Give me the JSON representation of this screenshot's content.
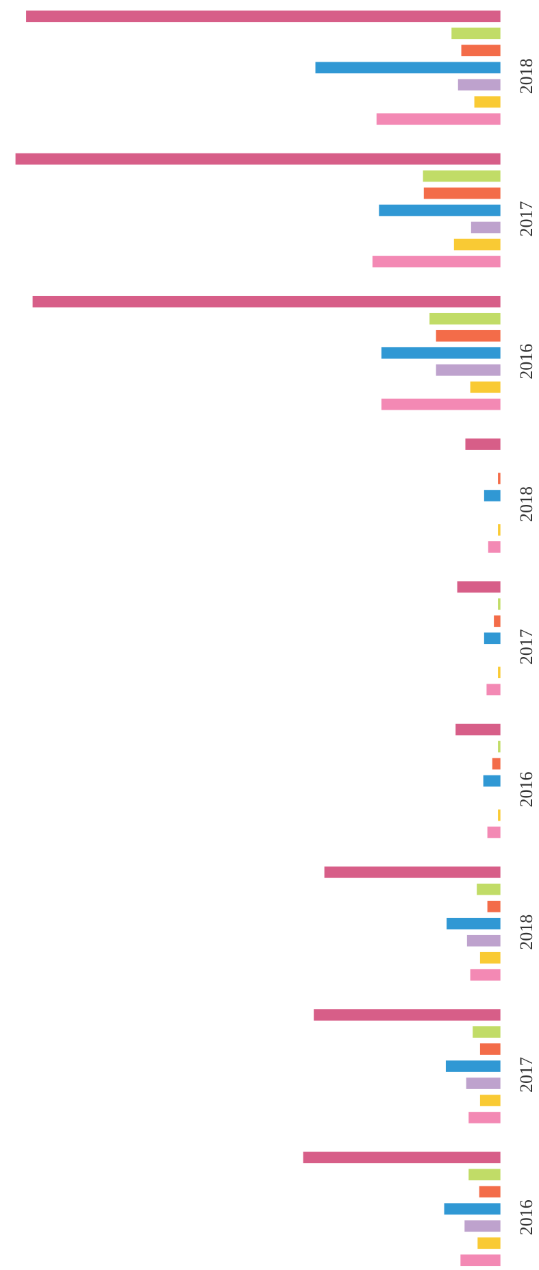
{
  "chart_data": {
    "type": "bar",
    "orientation": "horizontal",
    "categories": [
      "2016",
      "2017",
      "2018",
      "2016",
      "2017",
      "2018",
      "2016",
      "2017",
      "2018"
    ],
    "xlim": [
      0,
      600
    ],
    "series": [
      {
        "color": "#f27fae",
        "values": [
          49,
          39,
          37,
          16,
          17,
          15,
          146,
          157,
          152
        ]
      },
      {
        "color": "#f9c623",
        "values": [
          28,
          25,
          25,
          3,
          3,
          3,
          37,
          57,
          32
        ]
      },
      {
        "color": "#b99ac9",
        "values": [
          44,
          42,
          41,
          0,
          0,
          0,
          79,
          36,
          52
        ]
      },
      {
        "color": "#1e8fd0",
        "values": [
          69,
          67,
          66,
          21,
          20,
          20,
          146,
          149,
          227
        ]
      },
      {
        "color": "#f2603a",
        "values": [
          26,
          25,
          16,
          10,
          8,
          3,
          79,
          94,
          48
        ]
      },
      {
        "color": "#bcd95a",
        "values": [
          39,
          34,
          29,
          3,
          3,
          0,
          87,
          95,
          60
        ]
      },
      {
        "color": "#d4507e",
        "values": [
          242,
          229,
          216,
          55,
          53,
          43,
          574,
          595,
          582
        ]
      }
    ]
  }
}
